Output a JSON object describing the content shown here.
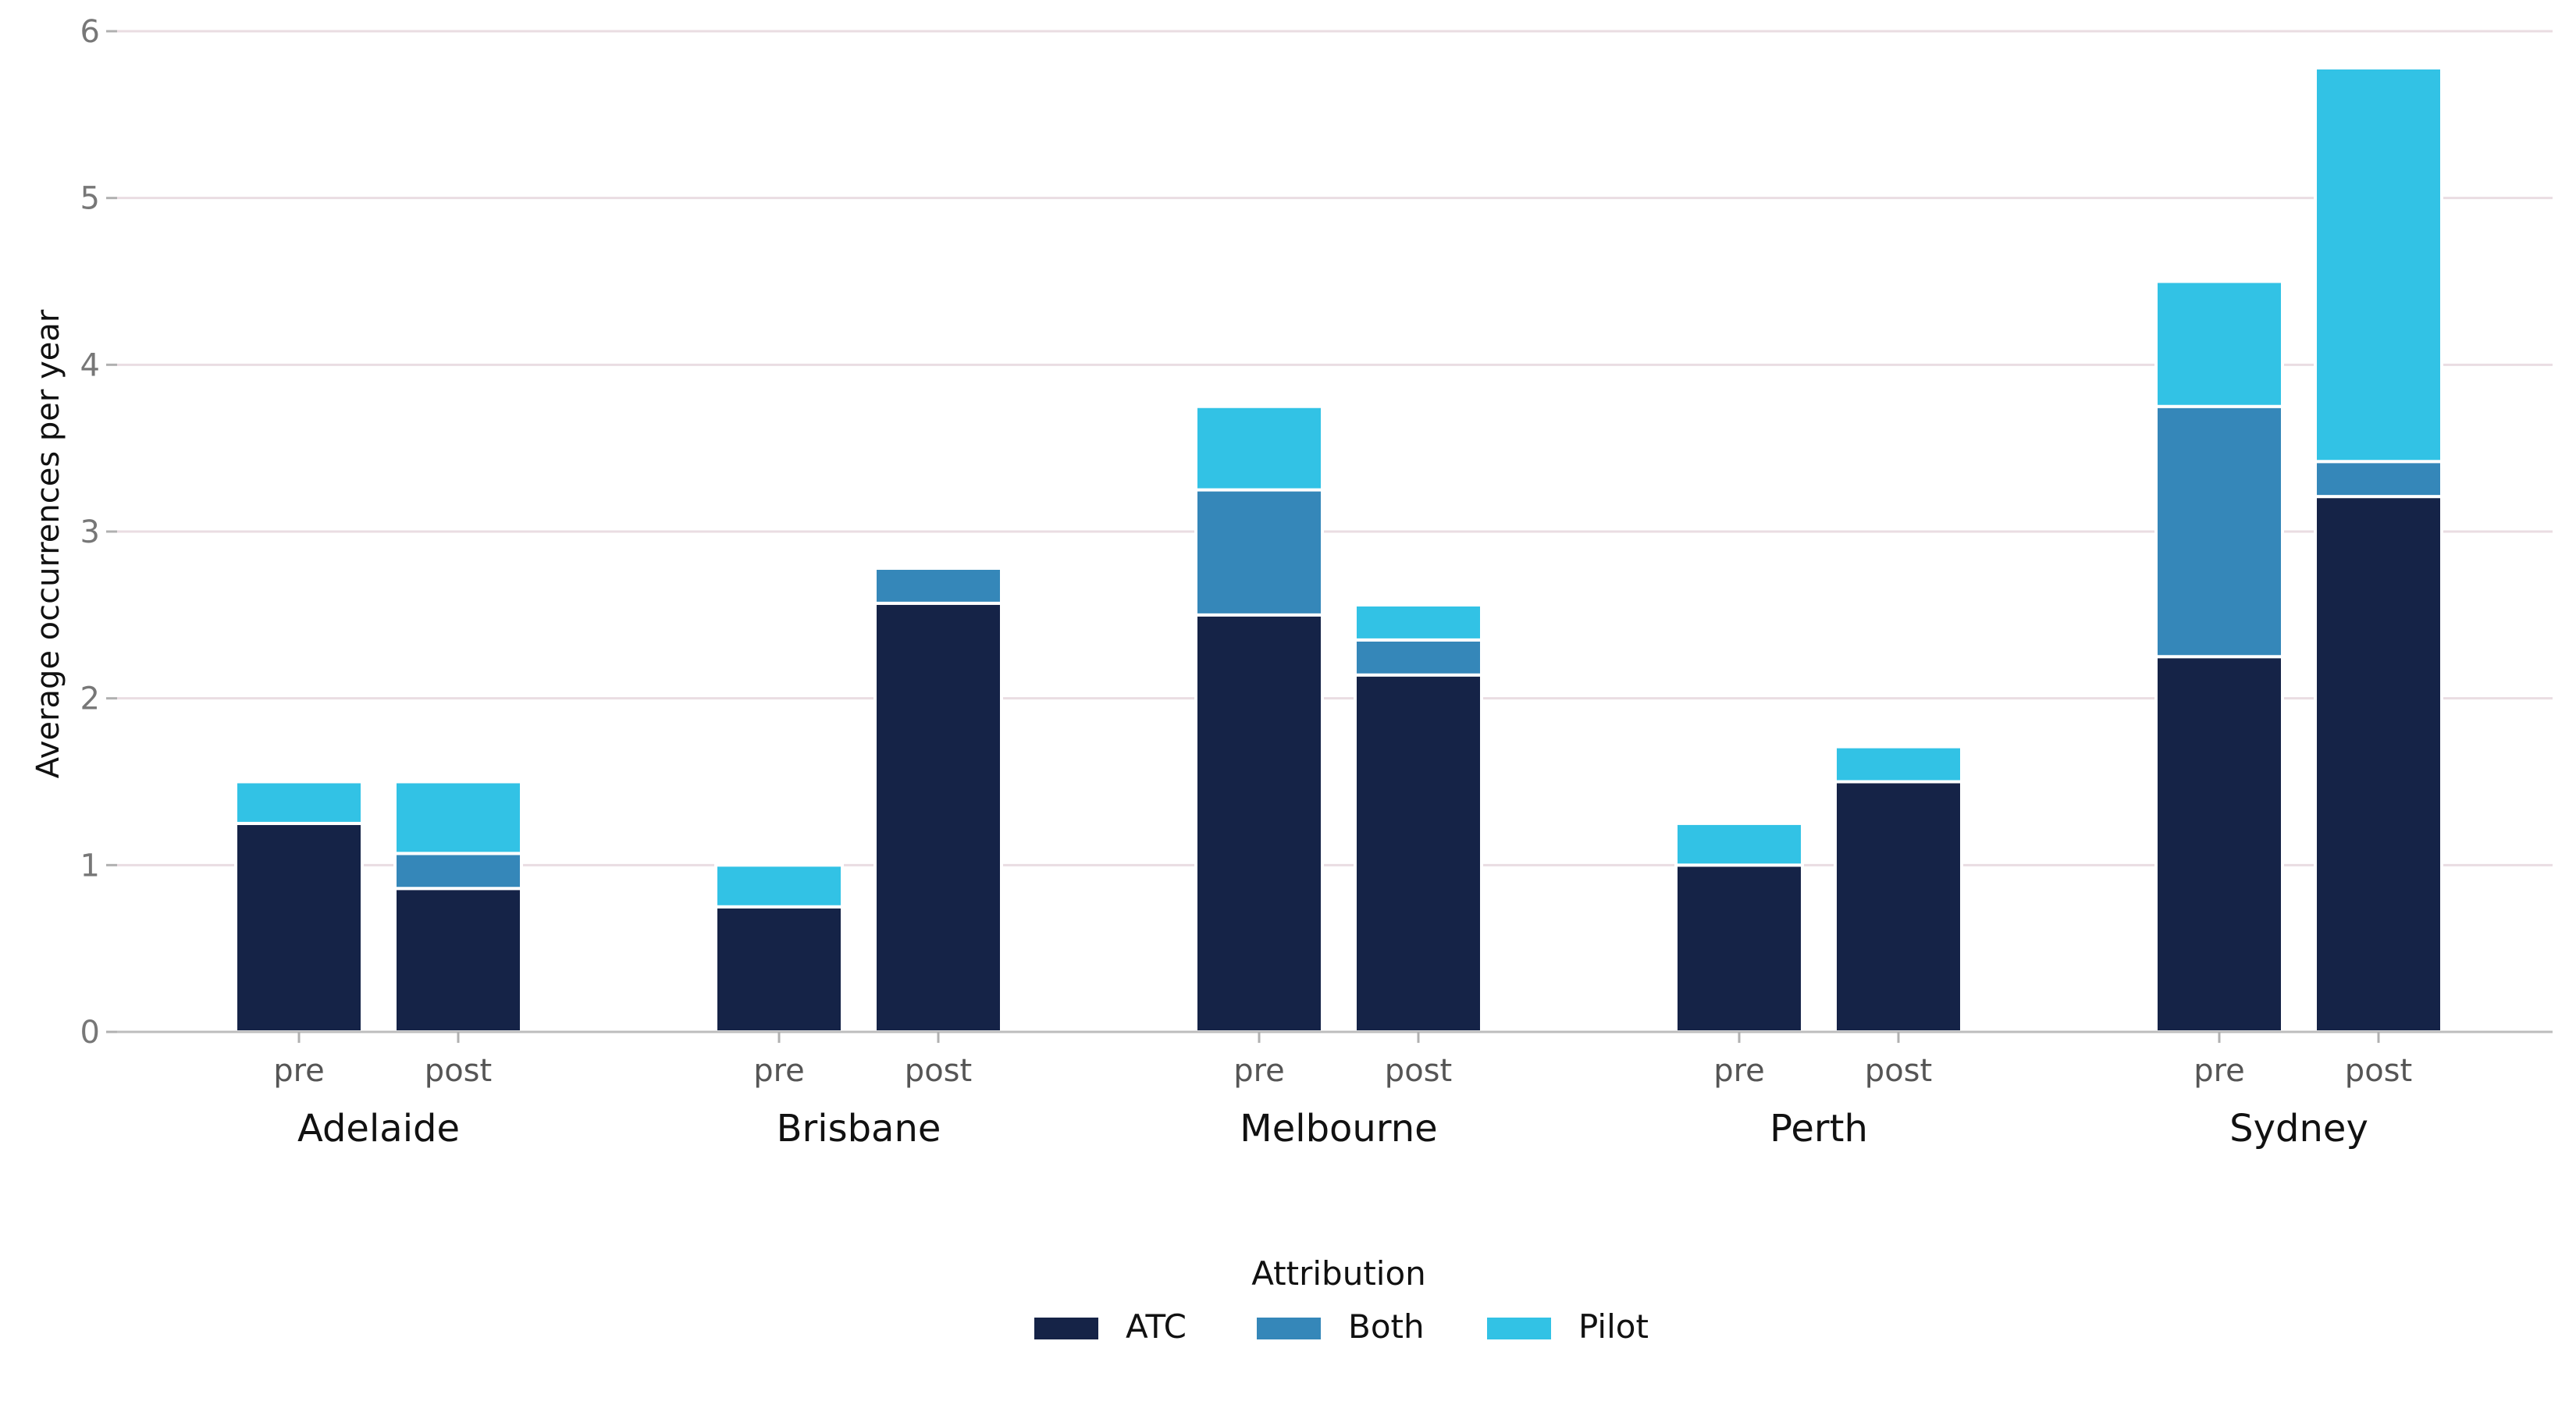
{
  "chart_data": {
    "type": "bar",
    "stacked": true,
    "ylabel": "Average occurrences per year",
    "ylim": [
      0,
      6
    ],
    "yticks": [
      0,
      1,
      2,
      3,
      4,
      5,
      6
    ],
    "grid": true,
    "groups": [
      "Adelaide",
      "Brisbane",
      "Melbourne",
      "Perth",
      "Sydney"
    ],
    "subcategories": [
      "pre",
      "post"
    ],
    "legend": {
      "title": "Attribution",
      "placement": "bottom-center"
    },
    "series": [
      {
        "name": "ATC",
        "color": "#152347",
        "values": [
          [
            1.25,
            0.86
          ],
          [
            0.75,
            2.57
          ],
          [
            2.5,
            2.14
          ],
          [
            1.0,
            1.5
          ],
          [
            2.25,
            3.21
          ]
        ]
      },
      {
        "name": "Both",
        "color": "#3587b9",
        "values": [
          [
            0,
            0.21
          ],
          [
            0,
            0.21
          ],
          [
            0.75,
            0.21
          ],
          [
            0,
            0
          ],
          [
            1.5,
            0.21
          ]
        ]
      },
      {
        "name": "Pilot",
        "color": "#32c2e5",
        "values": [
          [
            0.25,
            0.43
          ],
          [
            0.25,
            0
          ],
          [
            0.5,
            0.21
          ],
          [
            0.25,
            0.21
          ],
          [
            0.75,
            2.36
          ]
        ]
      }
    ]
  }
}
